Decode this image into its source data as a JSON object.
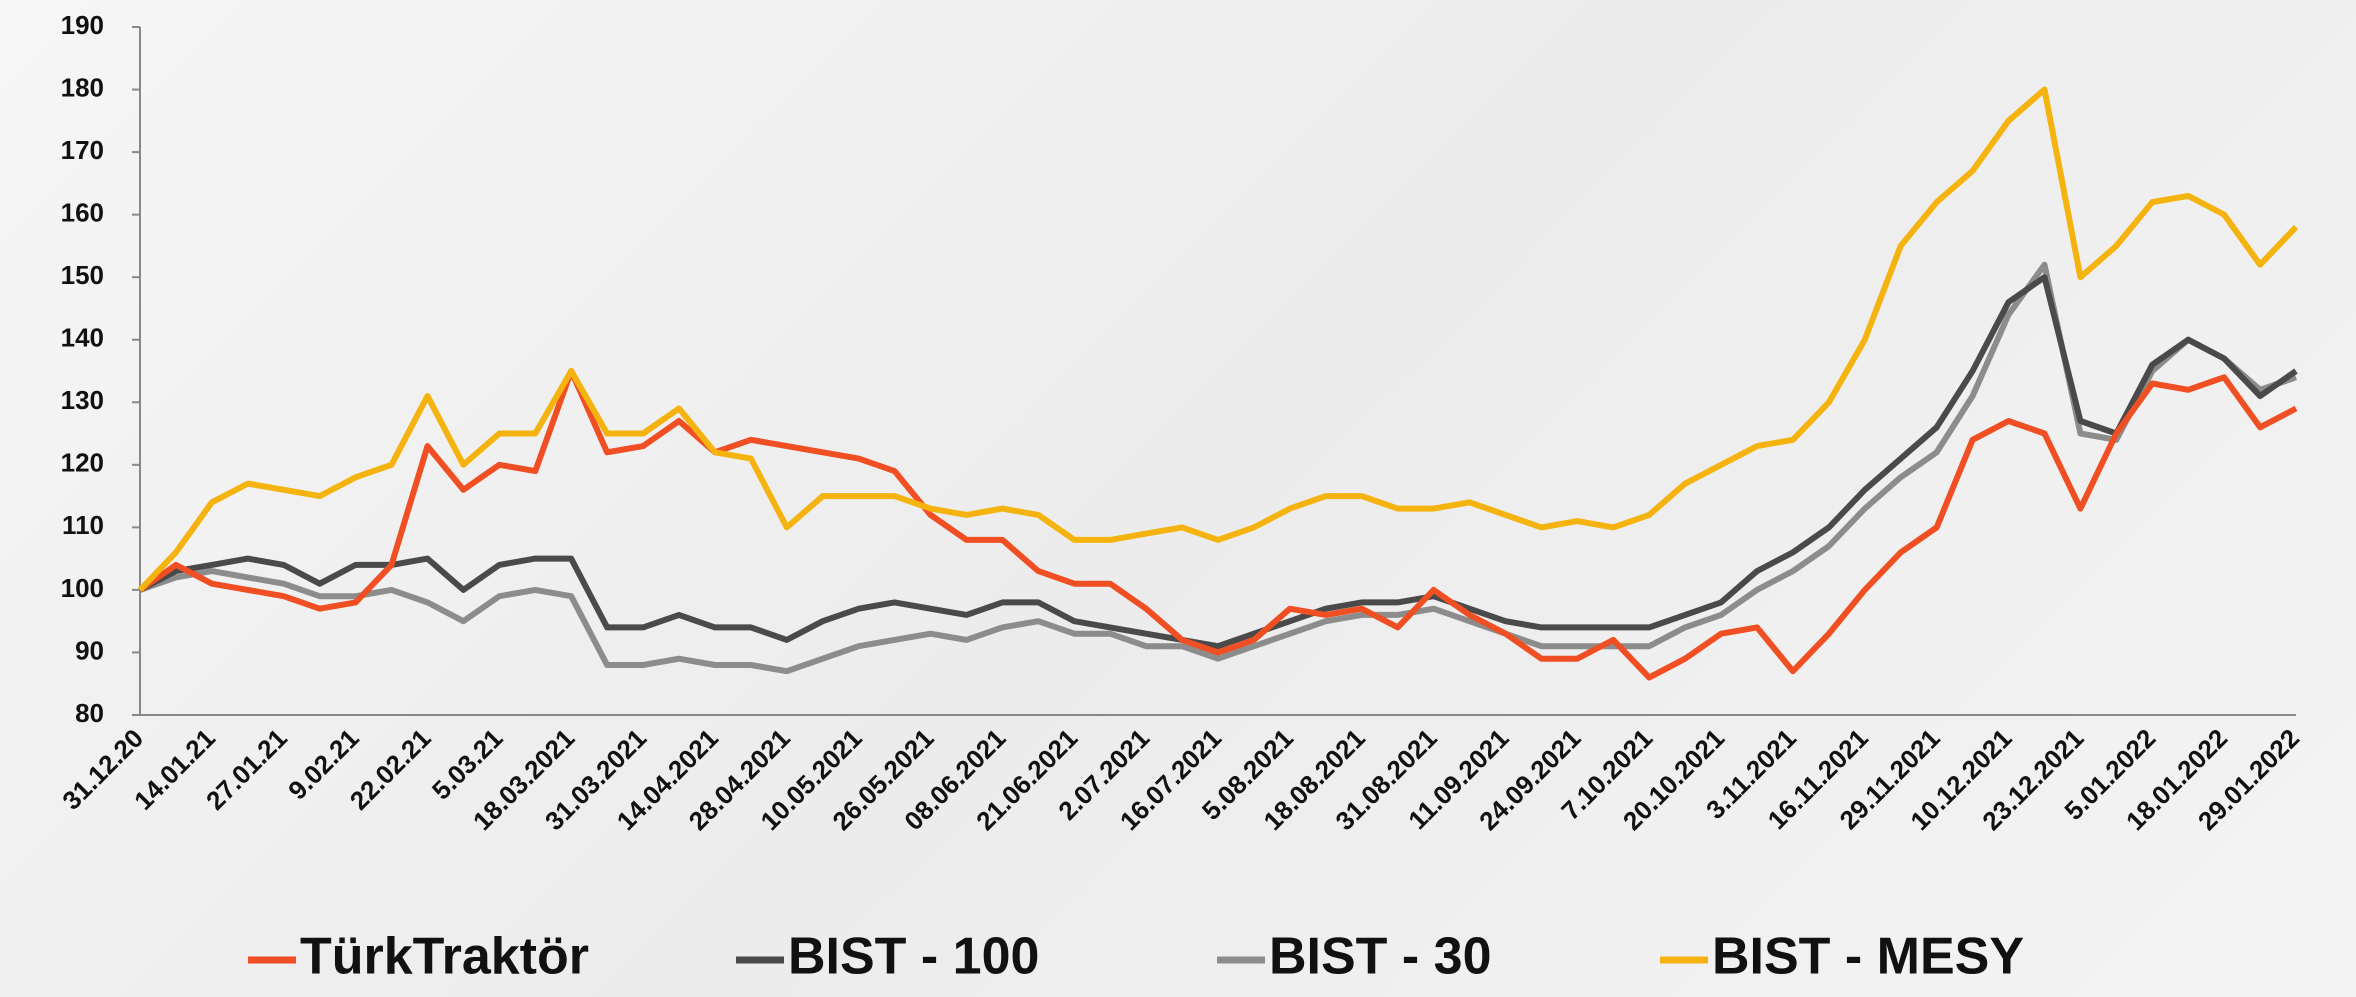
{
  "chart_data": {
    "type": "line",
    "categories": [
      "31.12.20",
      null,
      "14.01.21",
      null,
      "27.01.21",
      null,
      "9.02.21",
      null,
      "22.02.21",
      null,
      "5.03.21",
      null,
      "18.03.2021",
      null,
      "31.03.2021",
      null,
      "14.04.2021",
      null,
      "28.04.2021",
      null,
      "10.05.2021",
      null,
      "26.05.2021",
      null,
      "08.06.2021",
      null,
      "21.06.2021",
      null,
      "2.07.2021",
      null,
      "16.07.2021",
      null,
      "5.08.2021",
      null,
      "18.08.2021",
      null,
      "31.08.2021",
      null,
      "11.09.2021",
      null,
      "24.09.2021",
      null,
      "7.10.2021",
      null,
      "20.10.2021",
      null,
      "3.11.2021",
      null,
      "16.11.2021",
      null,
      "29.11.2021",
      null,
      "10.12.2021",
      null,
      "23.12.2021",
      null,
      "5.01.2022",
      null,
      "18.01.2022",
      null,
      "29.01.2022"
    ],
    "series": [
      {
        "name": "TürkTraktör",
        "color": "#f04e23",
        "values": [
          100,
          104,
          101,
          100,
          99,
          97,
          98,
          104,
          123,
          116,
          120,
          119,
          135,
          122,
          123,
          127,
          122,
          124,
          123,
          122,
          121,
          119,
          112,
          108,
          108,
          103,
          101,
          101,
          97,
          92,
          90,
          92,
          97,
          96,
          97,
          94,
          100,
          96,
          93,
          89,
          89,
          92,
          86,
          89,
          93,
          94,
          87,
          93,
          100,
          106,
          110,
          124,
          127,
          125,
          113,
          125,
          133,
          132,
          134,
          126,
          129
        ]
      },
      {
        "name": "BIST - 100",
        "color": "#4a4a4a",
        "values": [
          100,
          103,
          104,
          105,
          104,
          101,
          104,
          104,
          105,
          100,
          104,
          105,
          105,
          94,
          94,
          96,
          94,
          94,
          92,
          95,
          97,
          98,
          97,
          96,
          98,
          98,
          95,
          94,
          93,
          92,
          91,
          93,
          95,
          97,
          98,
          98,
          99,
          97,
          95,
          94,
          94,
          94,
          94,
          96,
          98,
          103,
          106,
          110,
          116,
          121,
          126,
          135,
          146,
          150,
          127,
          125,
          136,
          140,
          137,
          131,
          135
        ]
      },
      {
        "name": "BIST - 30",
        "color": "#8c8c8c",
        "values": [
          100,
          102,
          103,
          102,
          101,
          99,
          99,
          100,
          98,
          95,
          99,
          100,
          99,
          88,
          88,
          89,
          88,
          88,
          87,
          89,
          91,
          92,
          93,
          92,
          94,
          95,
          93,
          93,
          91,
          91,
          89,
          91,
          93,
          95,
          96,
          96,
          97,
          95,
          93,
          91,
          91,
          91,
          91,
          94,
          96,
          100,
          103,
          107,
          113,
          118,
          122,
          131,
          144,
          152,
          125,
          124,
          135,
          140,
          137,
          132,
          134
        ]
      },
      {
        "name": "BIST - MESY",
        "color": "#f5b30f",
        "values": [
          100,
          106,
          114,
          117,
          116,
          115,
          118,
          120,
          131,
          120,
          125,
          125,
          135,
          125,
          125,
          129,
          122,
          121,
          110,
          115,
          115,
          115,
          113,
          112,
          113,
          112,
          108,
          108,
          109,
          110,
          108,
          110,
          113,
          115,
          115,
          113,
          113,
          114,
          112,
          110,
          111,
          110,
          112,
          117,
          120,
          123,
          124,
          130,
          140,
          155,
          162,
          167,
          175,
          180,
          150,
          155,
          162,
          163,
          160,
          152,
          158
        ]
      }
    ],
    "ylim": [
      80,
      190
    ],
    "yticks": [
      80,
      90,
      100,
      110,
      120,
      130,
      140,
      150,
      160,
      170,
      180,
      190
    ],
    "grid": false
  }
}
